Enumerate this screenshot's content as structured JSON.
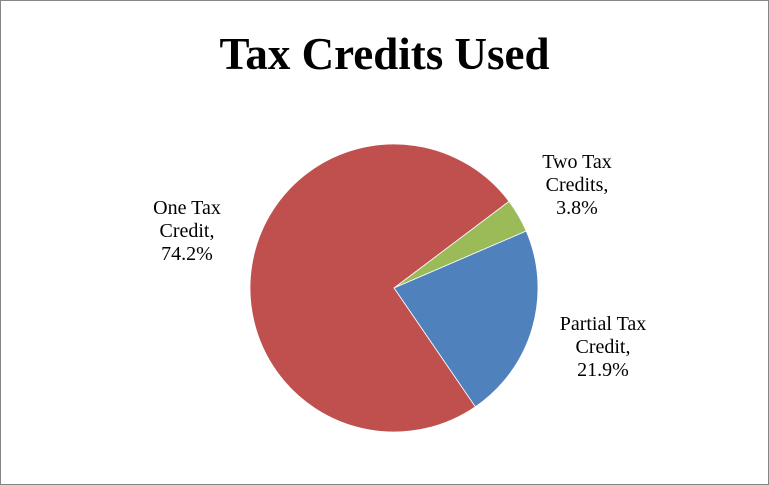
{
  "chart_data": {
    "type": "pie",
    "title": "Tax Credits Used",
    "slices": [
      {
        "name": "One Tax Credit",
        "value": 74.2,
        "label_lines": [
          "One Tax",
          "Credit,",
          "74.2%"
        ],
        "color": "#C0504D"
      },
      {
        "name": "Two Tax Credits",
        "value": 3.8,
        "label_lines": [
          "Two Tax",
          "Credits,",
          "3.8%"
        ],
        "color": "#9BBB59"
      },
      {
        "name": "Partial Tax Credit",
        "value": 21.9,
        "label_lines": [
          "Partial Tax",
          "Credit,",
          "21.9%"
        ],
        "color": "#4F81BD"
      }
    ],
    "legend": "none"
  }
}
